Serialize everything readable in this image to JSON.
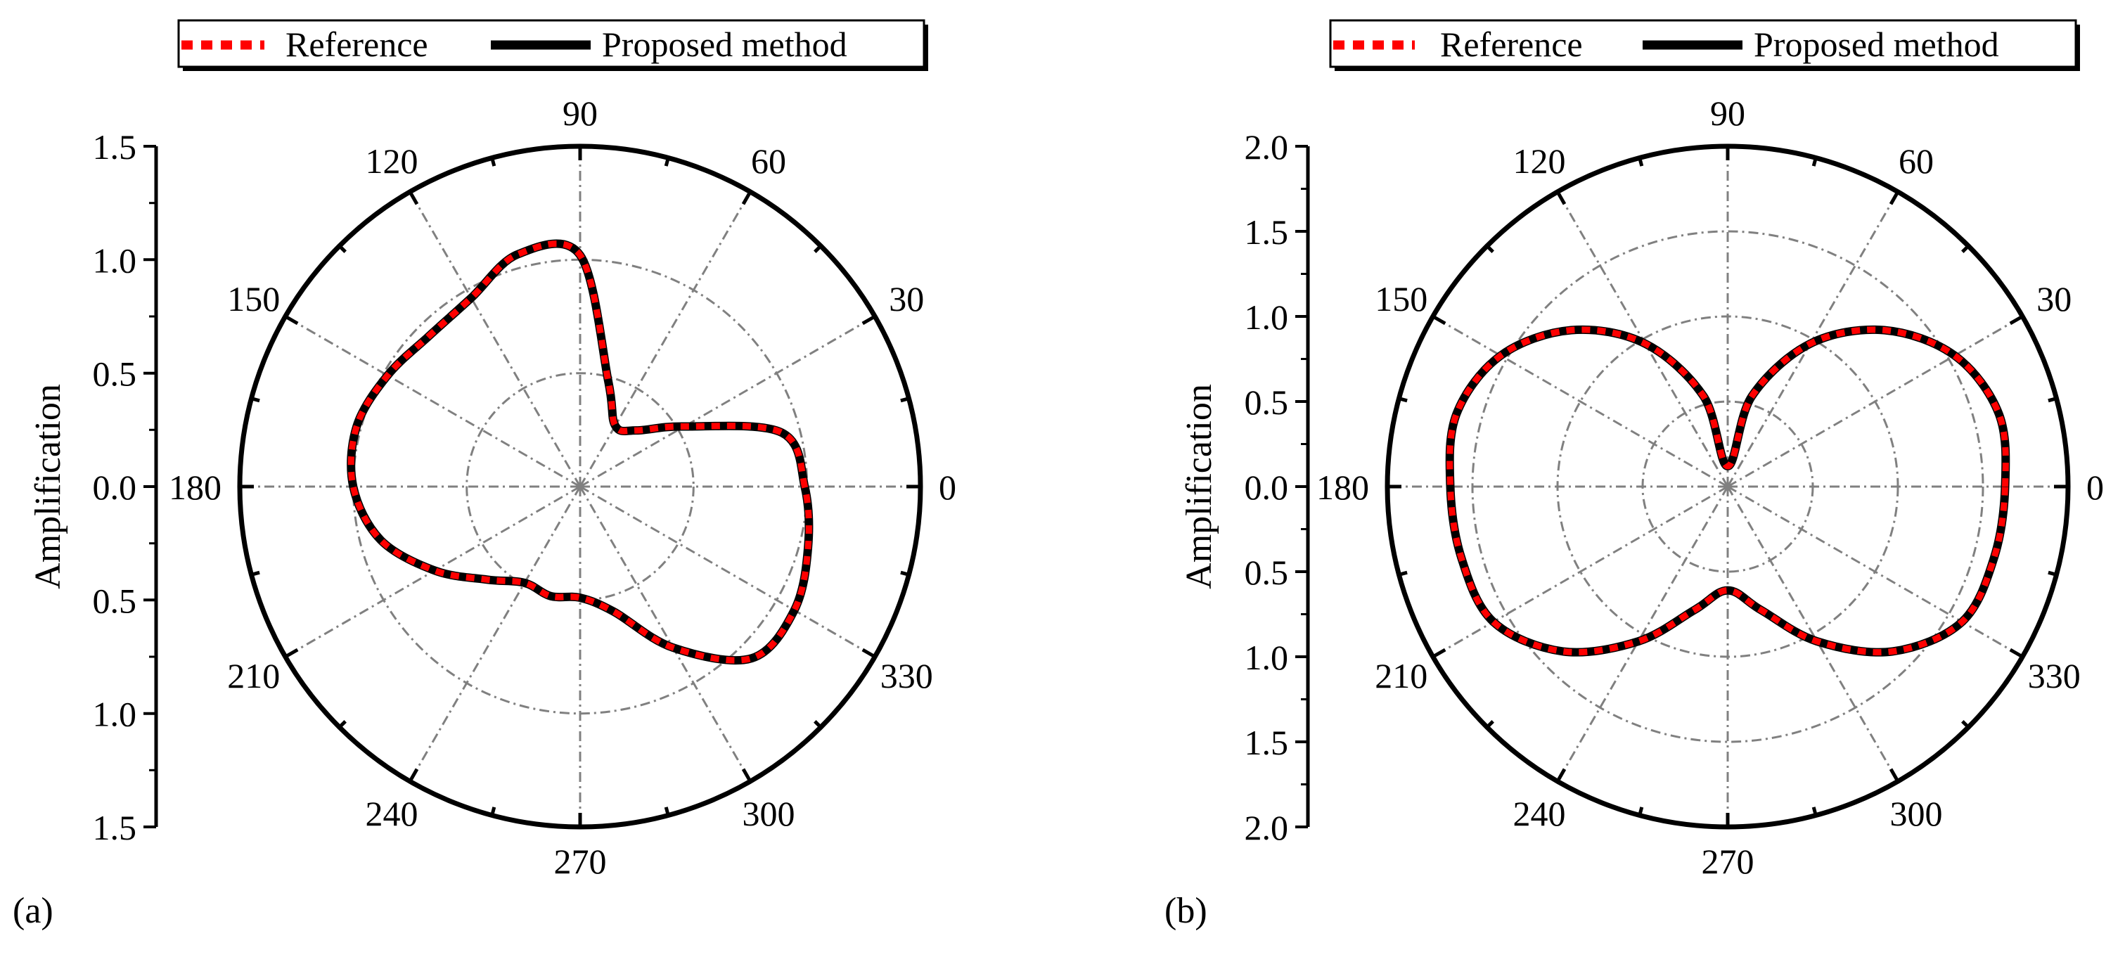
{
  "chart_data": [
    {
      "type": "polar-line",
      "panel_label": "(a)",
      "ylabel": "Amplification",
      "radial_range": [
        0,
        1.5
      ],
      "radial_ticks": [
        1.5,
        1.0,
        0.5,
        0.0,
        0.5,
        1.0,
        1.5
      ],
      "radial_tick_labels": [
        "1.5",
        "1.0",
        "0.5",
        "0.0",
        "0.5",
        "1.0",
        "1.5"
      ],
      "angle_tick_labels": [
        "0",
        "30",
        "60",
        "90",
        "120",
        "150",
        "180",
        "210",
        "240",
        "270",
        "300",
        "330"
      ],
      "grid_circles": [
        0.5,
        1.0
      ],
      "legend": {
        "position": "top",
        "entries": [
          {
            "label": "Reference",
            "style": "dashed",
            "color": "#ff0000"
          },
          {
            "label": "Proposed method",
            "style": "solid",
            "color": "#000000"
          }
        ]
      },
      "series": [
        {
          "name": "Reference",
          "angles_deg": [
            0,
            15,
            30,
            45,
            60,
            75,
            90,
            105,
            120,
            135,
            150,
            165,
            180,
            195,
            210,
            225,
            240,
            255,
            270,
            285,
            300,
            315,
            330,
            345,
            360
          ],
          "r": [
            0.99,
            0.92,
            0.53,
            0.35,
            0.31,
            0.48,
            1.02,
            1.06,
            0.96,
            0.94,
            0.98,
            1.02,
            1.0,
            0.91,
            0.74,
            0.58,
            0.49,
            0.5,
            0.49,
            0.57,
            0.82,
            1.07,
            1.09,
            1.04,
            0.99
          ]
        },
        {
          "name": "Proposed method",
          "angles_deg": [
            0,
            15,
            30,
            45,
            60,
            75,
            90,
            105,
            120,
            135,
            150,
            165,
            180,
            195,
            210,
            225,
            240,
            255,
            270,
            285,
            300,
            315,
            330,
            345,
            360
          ],
          "r": [
            0.99,
            0.92,
            0.53,
            0.35,
            0.31,
            0.48,
            1.02,
            1.06,
            0.96,
            0.94,
            0.98,
            1.02,
            1.0,
            0.91,
            0.74,
            0.58,
            0.49,
            0.5,
            0.49,
            0.57,
            0.82,
            1.07,
            1.09,
            1.04,
            0.99
          ]
        }
      ]
    },
    {
      "type": "polar-line",
      "panel_label": "(b)",
      "ylabel": "Amplification",
      "radial_range": [
        0,
        2.0
      ],
      "radial_ticks": [
        2.0,
        1.5,
        1.0,
        0.5,
        0.0,
        0.5,
        1.0,
        1.5,
        2.0
      ],
      "radial_tick_labels": [
        "2.0",
        "1.5",
        "1.0",
        "0.5",
        "0.0",
        "0.5",
        "1.0",
        "1.5",
        "2.0"
      ],
      "angle_tick_labels": [
        "0",
        "30",
        "60",
        "90",
        "120",
        "150",
        "180",
        "210",
        "240",
        "270",
        "300",
        "330"
      ],
      "grid_circles": [
        0.5,
        1.0,
        1.5
      ],
      "legend": {
        "position": "top",
        "entries": [
          {
            "label": "Reference",
            "style": "dashed",
            "color": "#ff0000"
          },
          {
            "label": "Proposed method",
            "style": "solid",
            "color": "#000000"
          }
        ]
      },
      "series": [
        {
          "name": "Reference",
          "angles_deg": [
            0,
            15,
            30,
            45,
            60,
            75,
            90,
            105,
            120,
            135,
            150,
            165,
            180,
            195,
            210,
            225,
            240,
            255,
            270,
            285,
            300,
            315,
            330,
            345,
            360
          ],
          "r": [
            1.63,
            1.65,
            1.54,
            1.3,
            0.97,
            0.55,
            0.12,
            0.55,
            0.97,
            1.3,
            1.54,
            1.65,
            1.63,
            1.62,
            1.59,
            1.37,
            1.05,
            0.75,
            0.61,
            0.75,
            1.05,
            1.37,
            1.59,
            1.62,
            1.63
          ]
        },
        {
          "name": "Proposed method",
          "angles_deg": [
            0,
            15,
            30,
            45,
            60,
            75,
            90,
            105,
            120,
            135,
            150,
            165,
            180,
            195,
            210,
            225,
            240,
            255,
            270,
            285,
            300,
            315,
            330,
            345,
            360
          ],
          "r": [
            1.63,
            1.65,
            1.54,
            1.3,
            0.97,
            0.55,
            0.12,
            0.55,
            0.97,
            1.3,
            1.54,
            1.65,
            1.63,
            1.62,
            1.59,
            1.37,
            1.05,
            0.75,
            0.61,
            0.75,
            1.05,
            1.37,
            1.59,
            1.62,
            1.63
          ]
        }
      ]
    }
  ]
}
